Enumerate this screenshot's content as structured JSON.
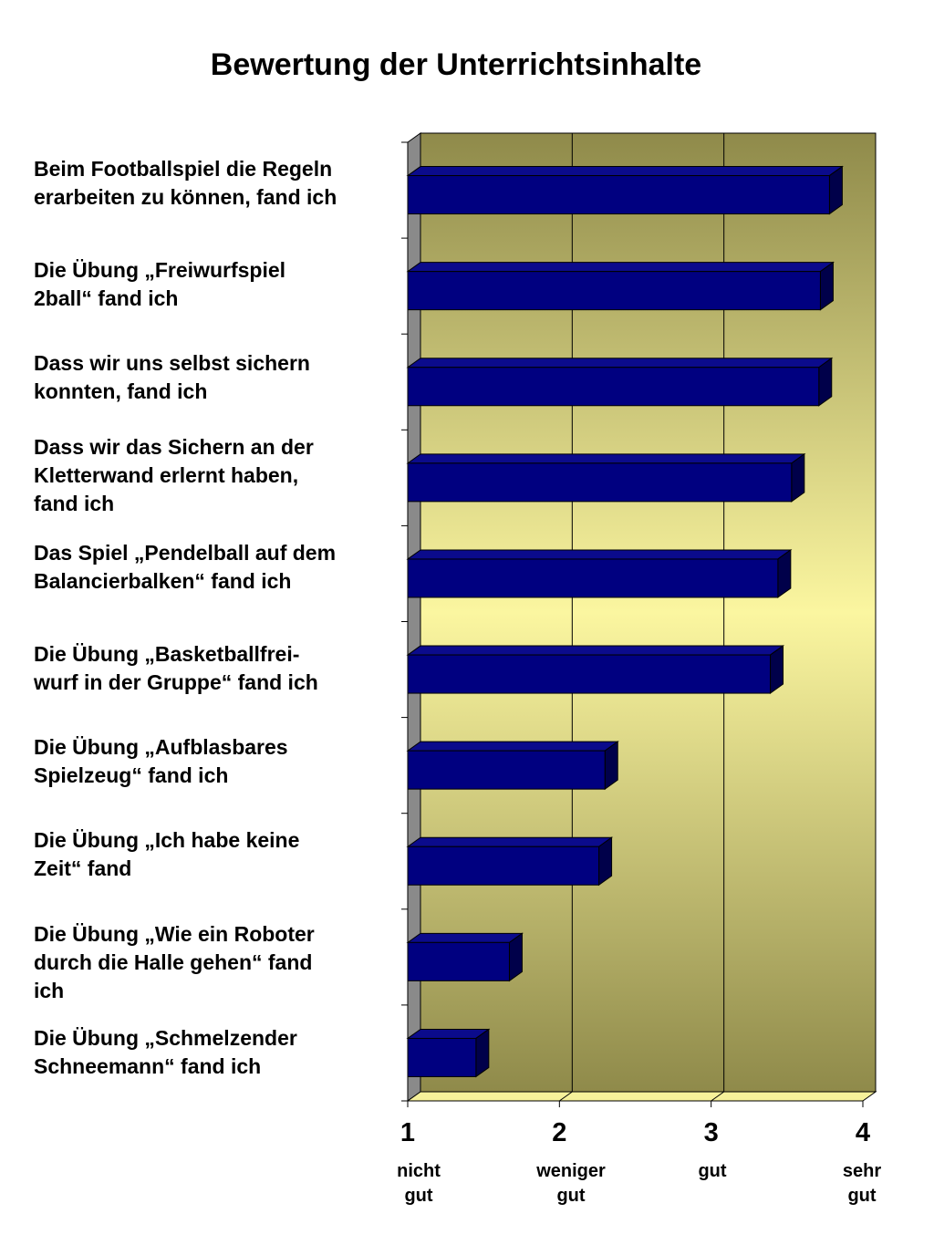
{
  "chart_data": {
    "type": "bar",
    "orientation": "horizontal",
    "title": "Bewertung der Unterrichtsinhalte",
    "categories": [
      "Beim Footballspiel die Regeln\nerarbeiten zu können, fand ich",
      "Die Übung „Freiwurfspiel\n2ball“ fand ich",
      "Dass wir uns selbst sichern\nkonnten, fand ich",
      "Dass wir das Sichern an der\nKletterwand erlernt haben,\nfand ich",
      "Das Spiel „Pendelball auf dem\nBalancierbalken“ fand ich",
      "Die Übung „Basketballfrei-\nwurf in der Gruppe“ fand ich",
      "Die Übung „Aufblasbares\nSpielzeug“ fand ich",
      "Die Übung „Ich habe keine\nZeit“ fand",
      "Die Übung „Wie ein Roboter\ndurch die Halle gehen“ fand\nich",
      "Die Übung „Schmelzender\nSchneemann“ fand ich"
    ],
    "values": [
      3.78,
      3.72,
      3.71,
      3.53,
      3.44,
      3.39,
      2.3,
      2.26,
      1.67,
      1.45
    ],
    "xlim": [
      1,
      4
    ],
    "xticks": [
      {
        "value": "1",
        "desc": "nicht\ngut"
      },
      {
        "value": "2",
        "desc": "weniger\ngut"
      },
      {
        "value": "3",
        "desc": "gut"
      },
      {
        "value": "4",
        "desc": "sehr\ngut"
      }
    ],
    "grid": true,
    "colors": {
      "bar_front": "#000080",
      "bar_top": "#0b0b8c",
      "bar_side": "#00004a",
      "bg_dark": "#8f8a4a",
      "bg_light": "#fbf6a0",
      "side_wall": "#8a8a8a"
    }
  }
}
